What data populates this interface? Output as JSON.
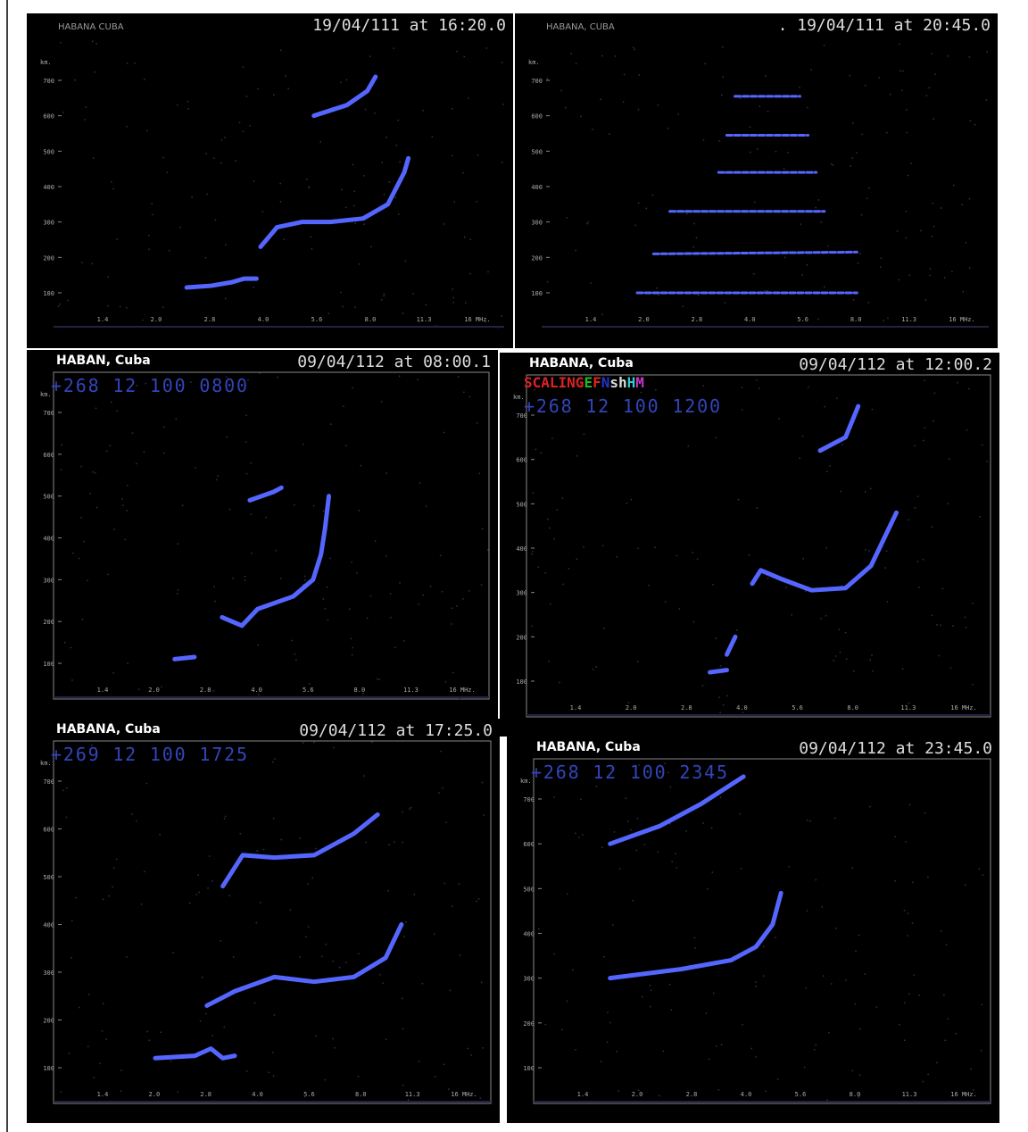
{
  "axes": {
    "y_unit": "km.",
    "y_ticks": [
      "700",
      "600",
      "500",
      "400",
      "300",
      "200",
      "100"
    ],
    "x_ticks": [
      "1.4",
      "2.0",
      "2.8",
      "4.0",
      "5.6",
      "8.0",
      "11.3",
      "16 MHz."
    ]
  },
  "panels": [
    {
      "station": "HABANA    CUBA",
      "timestamp": "19/04/111 at 16:20.0"
    },
    {
      "station": "HABANA, CUBA",
      "timestamp": ". 19/04/111 at 20:45.0"
    },
    {
      "station": "HABAN, Cuba",
      "timestamp": "09/04/112 at 08:00.1",
      "code": "+268 12 100 0800"
    },
    {
      "station": "HABANA, Cuba",
      "timestamp": "09/04/112 at 12:00.2",
      "code": "+268 12 100 1200",
      "scaling": [
        "SCALING",
        "E",
        "F",
        "N",
        "sh",
        "H",
        "M"
      ]
    },
    {
      "station": "HABANA, Cuba",
      "timestamp": "09/04/112 at 17:25.0",
      "code": "+269 12 100 1725"
    },
    {
      "station": "HABANA, Cuba",
      "timestamp": "09/04/112 at 23:45.0",
      "code": "+268 12 100 2345"
    }
  ]
}
